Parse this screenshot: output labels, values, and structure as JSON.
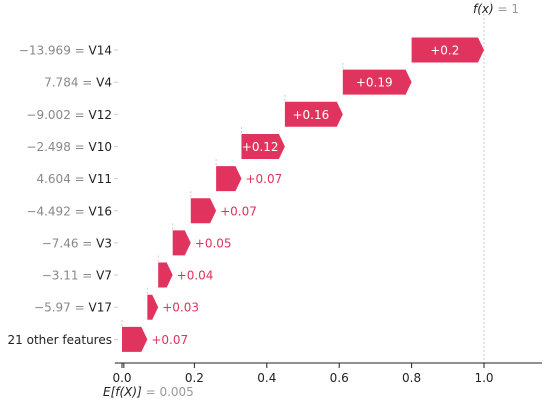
{
  "chart_data": {
    "type": "waterfall",
    "title": "",
    "xlim": [
      -0.02,
      1.16
    ],
    "xticks": [
      "0.0",
      "0.2",
      "0.4",
      "0.6",
      "0.8",
      "1.0"
    ],
    "xtick_values": [
      0.0,
      0.2,
      0.4,
      0.6,
      0.8,
      1.0
    ],
    "base_value": 0.005,
    "base_label_prefix": "E[f(X)]",
    "base_label_value": " = 0.005",
    "output_value": 1.0,
    "output_label_prefix": "f(x)",
    "output_label_value": " = 1",
    "bars": [
      {
        "feature": "V14",
        "feature_value": "−13.969",
        "contribution": 0.2,
        "label": "+0.2",
        "label_inside": true
      },
      {
        "feature": "V4",
        "feature_value": "7.784",
        "contribution": 0.19,
        "label": "+0.19",
        "label_inside": true
      },
      {
        "feature": "V12",
        "feature_value": "−9.002",
        "contribution": 0.16,
        "label": "+0.16",
        "label_inside": true
      },
      {
        "feature": "V10",
        "feature_value": "−2.498",
        "contribution": 0.12,
        "label": "+0.12",
        "label_inside": true
      },
      {
        "feature": "V11",
        "feature_value": "4.604",
        "contribution": 0.07,
        "label": "+0.07",
        "label_inside": false
      },
      {
        "feature": "V16",
        "feature_value": "−4.492",
        "contribution": 0.07,
        "label": "+0.07",
        "label_inside": false
      },
      {
        "feature": "V3",
        "feature_value": "−7.46",
        "contribution": 0.05,
        "label": "+0.05",
        "label_inside": false
      },
      {
        "feature": "V7",
        "feature_value": "−3.11",
        "contribution": 0.04,
        "label": "+0.04",
        "label_inside": false
      },
      {
        "feature": "V17",
        "feature_value": "−5.97",
        "contribution": 0.03,
        "label": "+0.03",
        "label_inside": false
      },
      {
        "feature": "21 other features",
        "feature_value": "",
        "contribution": 0.07,
        "label": "+0.07",
        "label_inside": false
      }
    ],
    "colors": {
      "positive": "#ff0051",
      "bar_fill": "#e0335e",
      "inside_label": "#ffffff",
      "outside_label": "#e0335e",
      "feature_value_text": "#888888",
      "feature_name_text": "#222222",
      "axis": "#222222",
      "dashed_line": "#cccccc",
      "muted": "#999999"
    }
  }
}
